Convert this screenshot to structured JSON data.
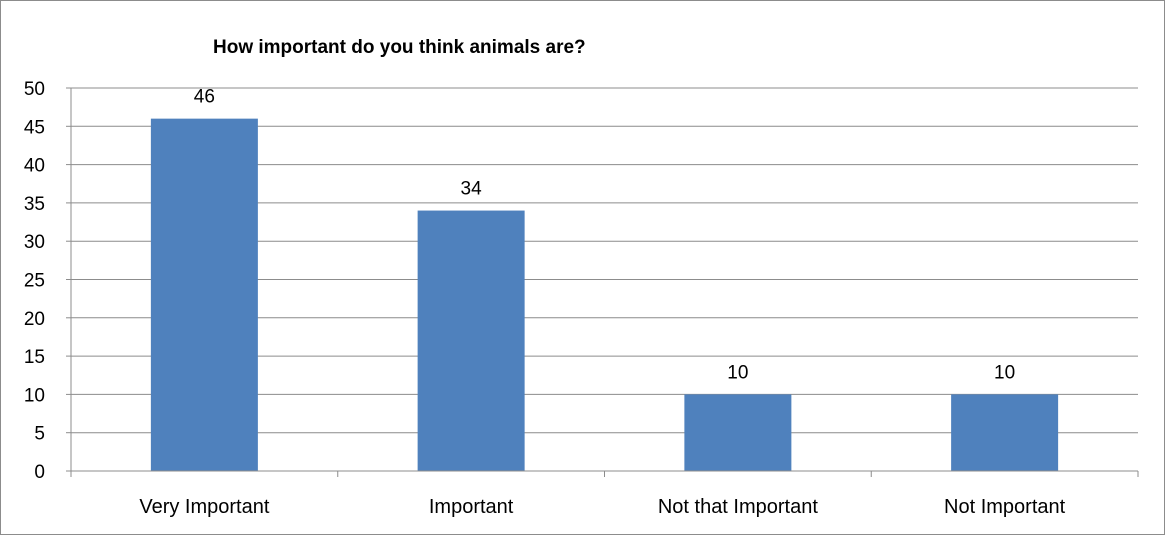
{
  "chart_data": {
    "type": "bar",
    "title": "How important do you think animals are?",
    "categories": [
      "Very Important",
      "Important",
      "Not that Important",
      "Not Important"
    ],
    "values": [
      46,
      34,
      10,
      10
    ],
    "data_labels": [
      "46",
      "34",
      "10",
      "10"
    ],
    "ylim": [
      0,
      50
    ],
    "ytick_step": 5,
    "grid": true,
    "legend": "none",
    "bar_color": "#4f81bd",
    "grid_color": "#8c8c8c"
  }
}
